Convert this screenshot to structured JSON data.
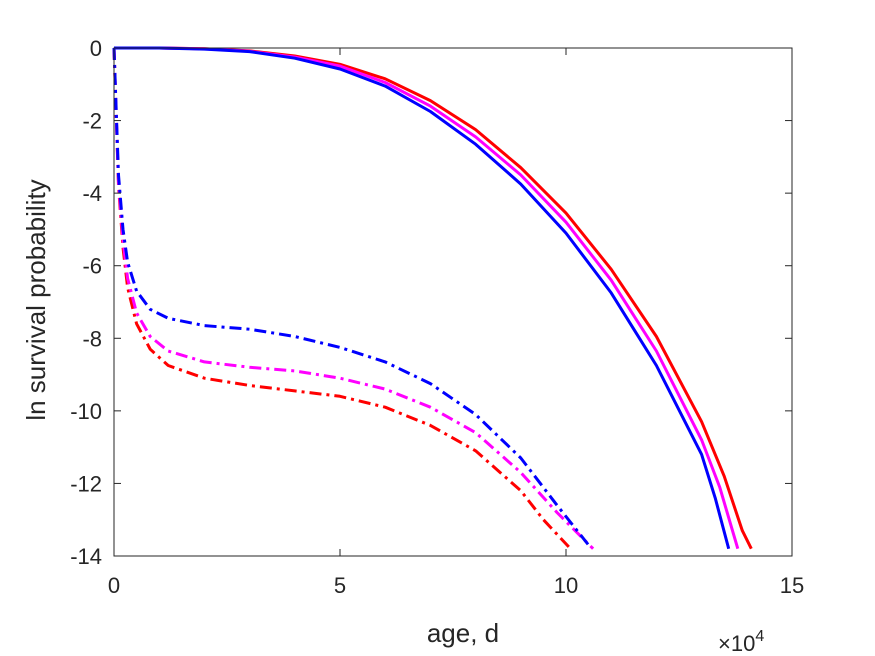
{
  "chart_data": {
    "type": "line",
    "title": "",
    "xlabel": "age, d",
    "ylabel": "ln survival probability",
    "x_exponent_label": {
      "base": "×10",
      "exponent": "4"
    },
    "xlim": [
      0,
      15
    ],
    "ylim": [
      -14,
      0
    ],
    "x_ticks": [
      0,
      5,
      10,
      15
    ],
    "x_tick_labels": [
      "0",
      "5",
      "10",
      "15"
    ],
    "y_ticks": [
      0,
      -2,
      -4,
      -6,
      -8,
      -10,
      -12,
      -14
    ],
    "y_tick_labels": [
      "0",
      "-2",
      "-4",
      "-6",
      "-8",
      "-10",
      "-12",
      "-14"
    ],
    "grid": false,
    "box": true,
    "x_units_note": "x values are in units of 10^4 days",
    "series": [
      {
        "color": "#ff0000",
        "style": "solid",
        "x": [
          0,
          1,
          2,
          3,
          4,
          5,
          6,
          7,
          8,
          9,
          10,
          11,
          12,
          13,
          13.5,
          13.9,
          14.1
        ],
        "y": [
          0,
          0,
          -0.02,
          -0.08,
          -0.22,
          -0.45,
          -0.85,
          -1.45,
          -2.25,
          -3.3,
          -4.55,
          -6.1,
          -7.95,
          -10.3,
          -11.8,
          -13.3,
          -13.8
        ]
      },
      {
        "color": "#ff00ff",
        "style": "solid",
        "x": [
          0,
          1,
          2,
          3,
          4,
          5,
          6,
          7,
          8,
          9,
          10,
          11,
          12,
          13,
          13.4,
          13.8
        ],
        "y": [
          0,
          0,
          -0.02,
          -0.09,
          -0.25,
          -0.5,
          -0.95,
          -1.6,
          -2.45,
          -3.5,
          -4.8,
          -6.4,
          -8.35,
          -10.8,
          -12.1,
          -13.8
        ]
      },
      {
        "color": "#0000ff",
        "style": "solid",
        "x": [
          0,
          1,
          2,
          3,
          4,
          5,
          6,
          7,
          8,
          9,
          10,
          11,
          12,
          13,
          13.3,
          13.6
        ],
        "y": [
          0,
          0,
          -0.03,
          -0.1,
          -0.28,
          -0.58,
          -1.05,
          -1.75,
          -2.65,
          -3.75,
          -5.1,
          -6.75,
          -8.75,
          -11.2,
          -12.4,
          -13.8
        ]
      },
      {
        "color": "#ff0000",
        "style": "dashdot",
        "x": [
          0,
          0.1,
          0.2,
          0.3,
          0.5,
          0.8,
          1.2,
          2,
          3,
          4,
          5,
          6,
          7,
          8,
          9,
          9.5,
          10.1
        ],
        "y": [
          0,
          -3.8,
          -5.5,
          -6.6,
          -7.6,
          -8.3,
          -8.75,
          -9.1,
          -9.3,
          -9.45,
          -9.6,
          -9.9,
          -10.4,
          -11.1,
          -12.2,
          -13.0,
          -13.8
        ]
      },
      {
        "color": "#ff00ff",
        "style": "dashdot",
        "x": [
          0,
          0.1,
          0.2,
          0.3,
          0.5,
          0.8,
          1.2,
          2,
          3,
          4,
          5,
          6,
          7,
          8,
          9,
          9.8,
          10.6
        ],
        "y": [
          0,
          -3.7,
          -5.3,
          -6.35,
          -7.3,
          -7.95,
          -8.35,
          -8.65,
          -8.8,
          -8.9,
          -9.1,
          -9.4,
          -9.9,
          -10.6,
          -11.7,
          -12.8,
          -13.8
        ]
      },
      {
        "color": "#0000ff",
        "style": "dashdot",
        "x": [
          0,
          0.1,
          0.2,
          0.3,
          0.5,
          0.8,
          1.2,
          2,
          3,
          4,
          5,
          6,
          7,
          8,
          9,
          9.8,
          10.5
        ],
        "y": [
          0,
          -3.5,
          -5.0,
          -5.9,
          -6.7,
          -7.2,
          -7.45,
          -7.65,
          -7.75,
          -7.95,
          -8.25,
          -8.65,
          -9.25,
          -10.1,
          -11.3,
          -12.6,
          -13.7
        ]
      }
    ]
  }
}
